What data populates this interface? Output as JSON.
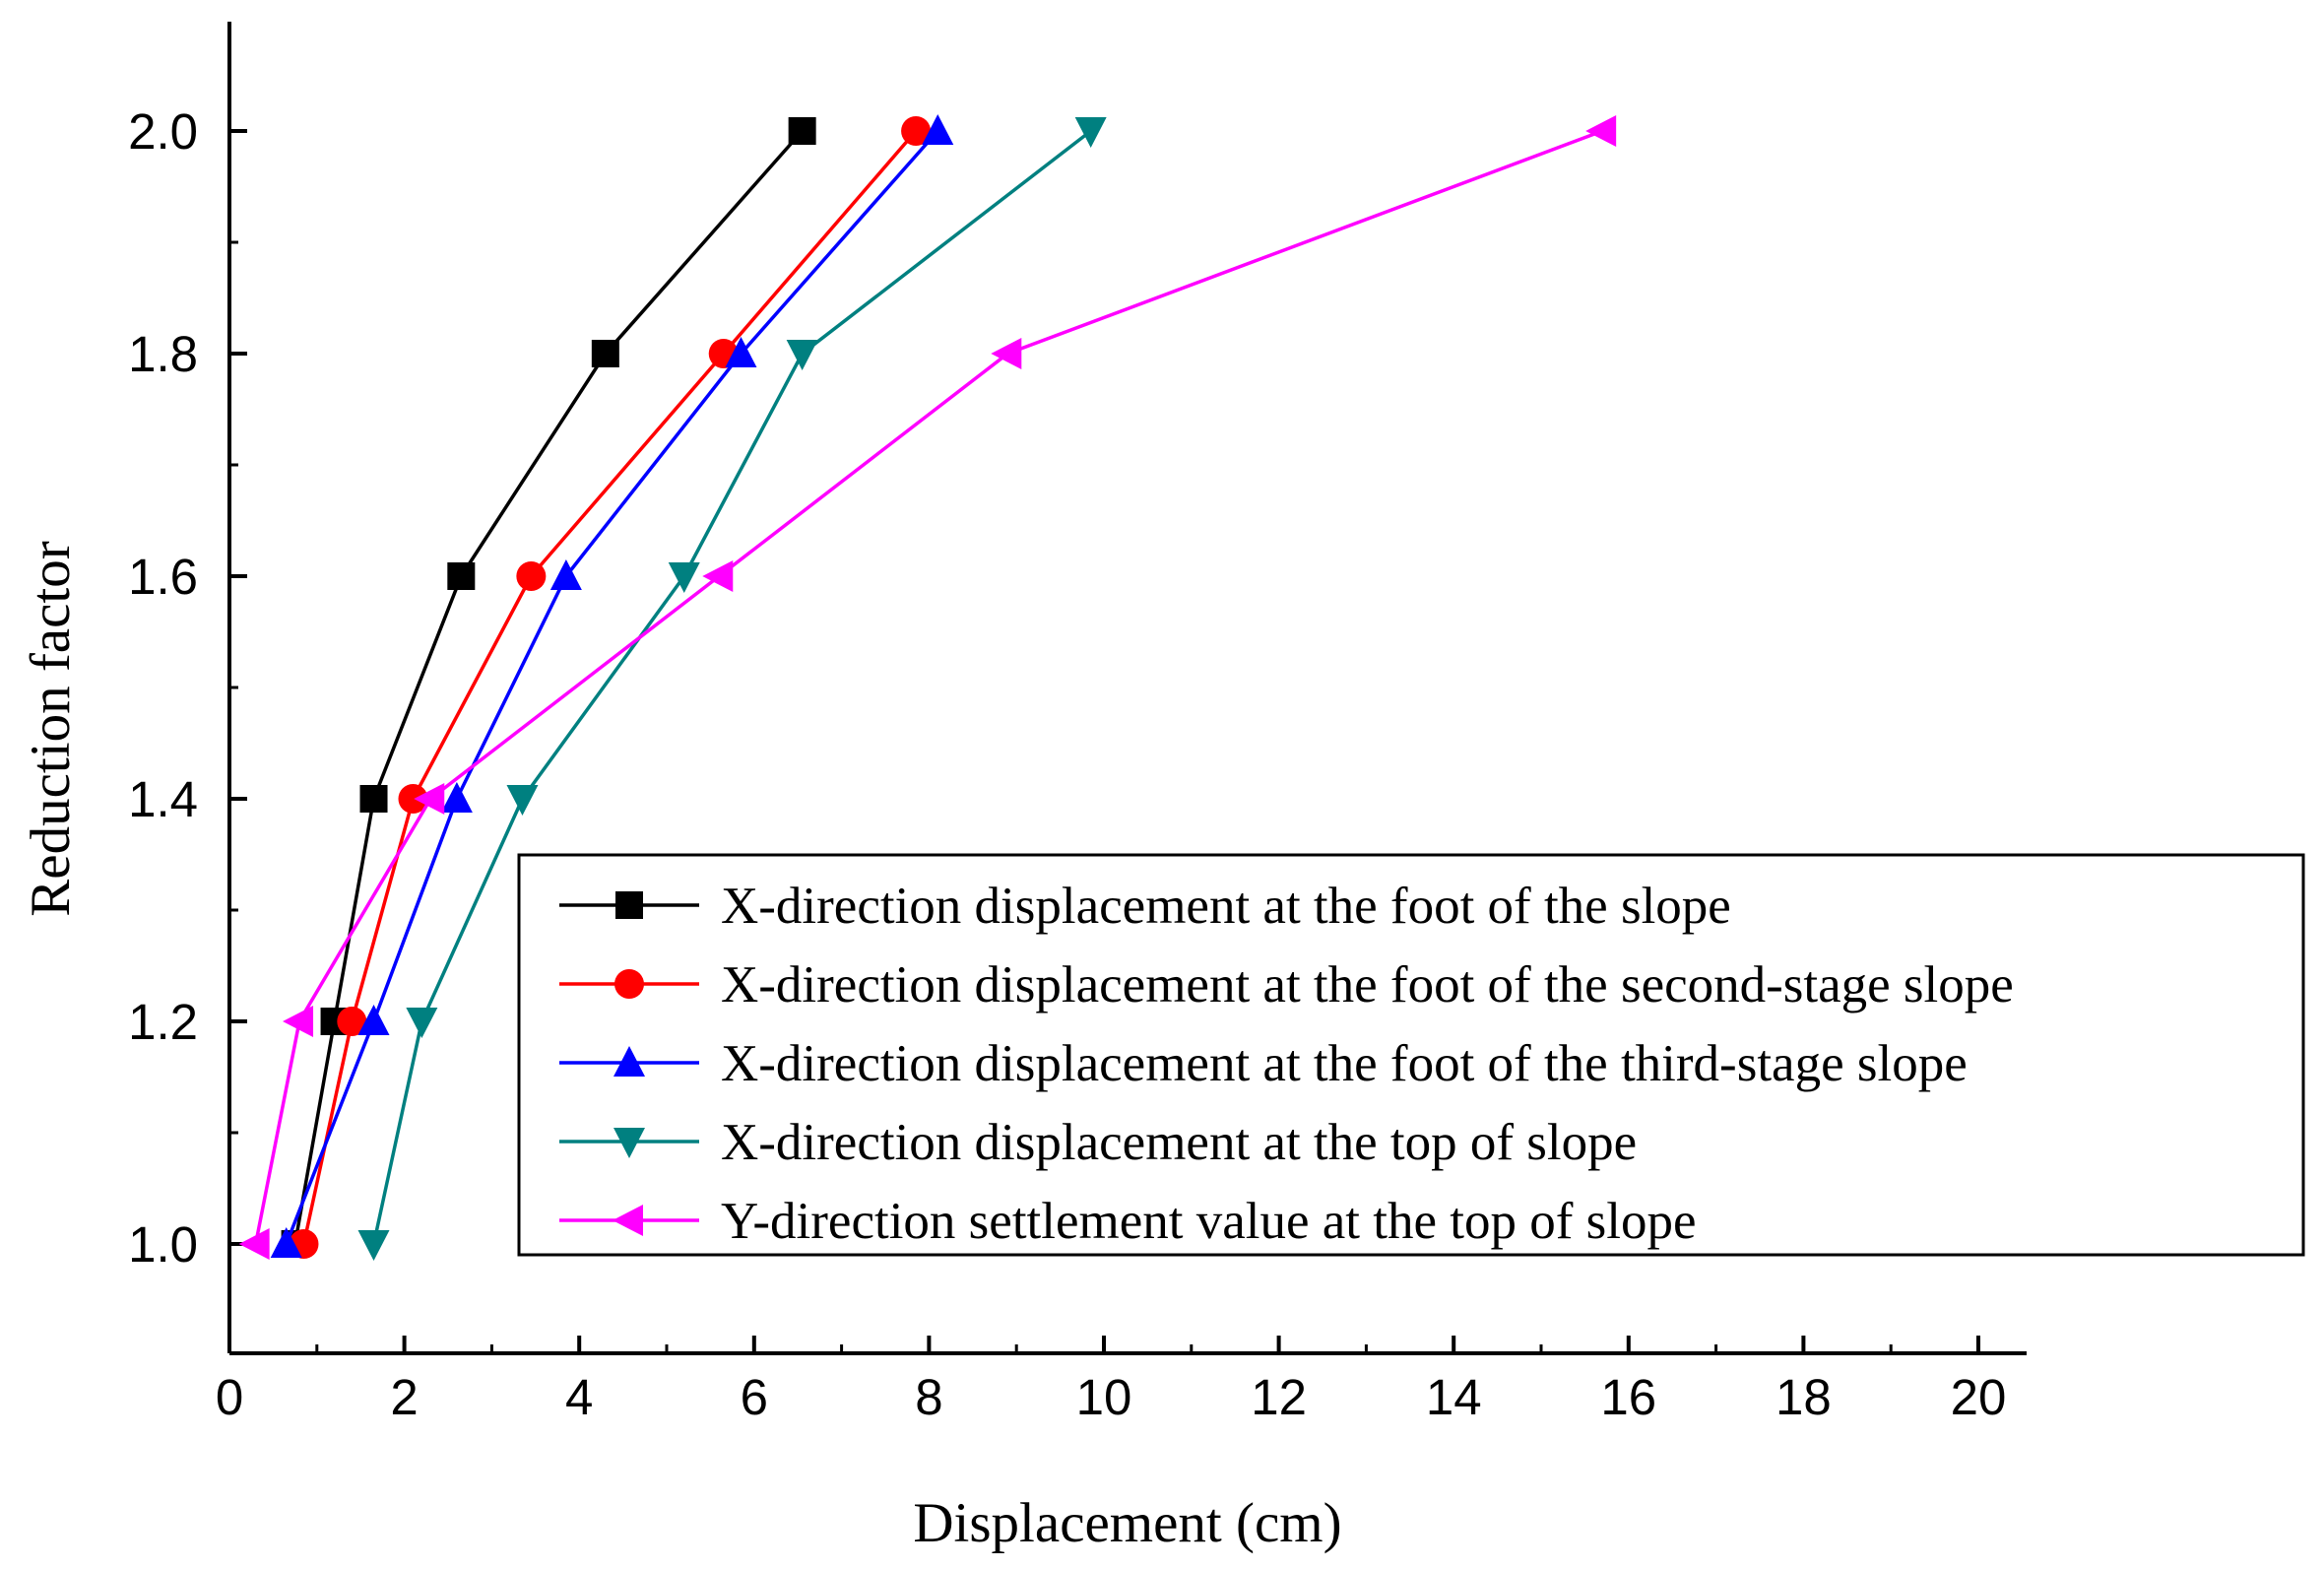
{
  "chart_data": {
    "type": "line",
    "title": "",
    "xlabel": "Displacement (cm)",
    "ylabel": "Reduction factor",
    "xlim": [
      0,
      20.5
    ],
    "ylim": [
      0.9,
      2.1
    ],
    "xticks": [
      0,
      2,
      4,
      6,
      8,
      10,
      12,
      14,
      16,
      18,
      20
    ],
    "yticks": [
      1.0,
      1.2,
      1.4,
      1.6,
      1.8,
      2.0
    ],
    "xtick_labels": [
      "0",
      "2",
      "4",
      "6",
      "8",
      "10",
      "12",
      "14",
      "16",
      "18",
      "20"
    ],
    "ytick_labels": [
      "1.0",
      "1.2",
      "1.4",
      "1.6",
      "1.8",
      "2.0"
    ],
    "grid": false,
    "legend_position": "lower-right",
    "series": [
      {
        "name": "X-direction displacement at the foot of the slope",
        "color": "#000000",
        "marker": "square",
        "x": [
          0.75,
          1.2,
          1.65,
          2.65,
          4.3,
          6.55
        ],
        "y": [
          1.0,
          1.2,
          1.4,
          1.6,
          1.8,
          2.0
        ]
      },
      {
        "name": "X-direction displacement at the foot of the second-stage slope",
        "color": "#ff0000",
        "marker": "circle",
        "x": [
          0.85,
          1.4,
          2.1,
          3.45,
          5.65,
          7.85
        ],
        "y": [
          1.0,
          1.2,
          1.4,
          1.6,
          1.8,
          2.0
        ]
      },
      {
        "name": "X-direction displacement at the foot of the third-stage slope",
        "color": "#0000ff",
        "marker": "triangle-up",
        "x": [
          0.65,
          1.65,
          2.6,
          3.85,
          5.85,
          8.1
        ],
        "y": [
          1.0,
          1.2,
          1.4,
          1.6,
          1.8,
          2.0
        ]
      },
      {
        "name": "X-direction displacement at the top of slope",
        "color": "#008080",
        "marker": "triangle-down",
        "x": [
          1.65,
          2.2,
          3.35,
          5.2,
          6.55,
          9.85
        ],
        "y": [
          1.0,
          1.2,
          1.4,
          1.6,
          1.8,
          2.0
        ]
      },
      {
        "name": "Y-direction settlement value at the top of slope",
        "color": "#ff00ff",
        "marker": "triangle-left",
        "x": [
          0.3,
          0.8,
          2.3,
          5.6,
          8.9,
          15.7
        ],
        "y": [
          1.0,
          1.2,
          1.4,
          1.6,
          1.8,
          2.0
        ]
      }
    ]
  }
}
